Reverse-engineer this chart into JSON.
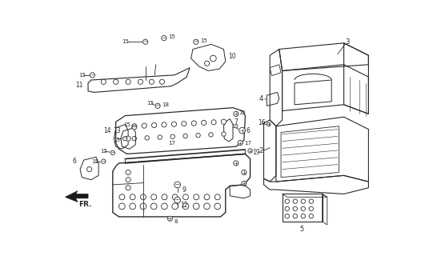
{
  "bg_color": "#f5f5f0",
  "line_color": "#2a2a2a",
  "figsize": [
    5.31,
    3.2
  ],
  "dpi": 100,
  "lw": 0.6
}
